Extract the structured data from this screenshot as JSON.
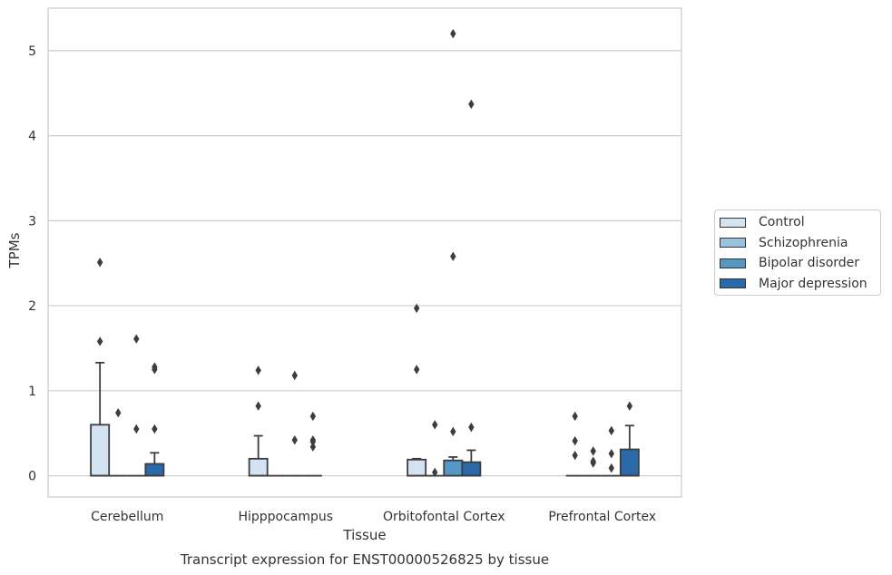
{
  "chart_data": {
    "type": "box",
    "title": "Transcript expression for ENST00000526825 by tissue",
    "xlabel": "Tissue",
    "ylabel": "TPMs",
    "ylim": [
      -0.25,
      5.5
    ],
    "yticks": [
      0,
      1,
      2,
      3,
      4,
      5
    ],
    "grid": "horizontal",
    "legend_position": "right",
    "categories": [
      "Cerebellum",
      "Hipppocampus",
      "Orbitofontal Cortex",
      "Prefrontal Cortex"
    ],
    "series": [
      {
        "name": "Control",
        "color": "#d4e3f1",
        "boxes": [
          {
            "q1": 0,
            "median": 0,
            "q3": 0.6,
            "whisker_low": 0,
            "whisker_high": 1.33,
            "outliers": [
              1.58,
              2.51
            ]
          },
          {
            "q1": 0,
            "median": 0,
            "q3": 0.2,
            "whisker_low": 0,
            "whisker_high": 0.47,
            "outliers": [
              0.82,
              1.24
            ]
          },
          {
            "q1": 0,
            "median": 0,
            "q3": 0.19,
            "whisker_low": 0,
            "whisker_high": 0.2,
            "outliers": [
              1.25,
              1.97
            ]
          },
          {
            "q1": 0,
            "median": 0,
            "q3": 0,
            "whisker_low": 0,
            "whisker_high": 0,
            "outliers": [
              0.24,
              0.41,
              0.7
            ]
          }
        ]
      },
      {
        "name": "Schizophrenia",
        "color": "#9ac2dd",
        "boxes": [
          {
            "q1": 0,
            "median": 0,
            "q3": 0,
            "whisker_low": 0,
            "whisker_high": 0,
            "outliers": [
              0.74
            ]
          },
          {
            "q1": 0,
            "median": 0,
            "q3": 0,
            "whisker_low": 0,
            "whisker_high": 0,
            "outliers": []
          },
          {
            "q1": 0,
            "median": 0,
            "q3": 0,
            "whisker_low": 0,
            "whisker_high": 0,
            "outliers": [
              0.04,
              0.6
            ]
          },
          {
            "q1": 0,
            "median": 0,
            "q3": 0,
            "whisker_low": 0,
            "whisker_high": 0,
            "outliers": [
              0.15,
              0.17,
              0.29
            ]
          }
        ]
      },
      {
        "name": "Bipolar disorder",
        "color": "#5597c5",
        "boxes": [
          {
            "q1": 0,
            "median": 0,
            "q3": 0,
            "whisker_low": 0,
            "whisker_high": 0,
            "outliers": [
              0.55,
              1.61
            ]
          },
          {
            "q1": 0,
            "median": 0,
            "q3": 0,
            "whisker_low": 0,
            "whisker_high": 0,
            "outliers": [
              0.42,
              1.18
            ]
          },
          {
            "q1": 0,
            "median": 0,
            "q3": 0.18,
            "whisker_low": 0,
            "whisker_high": 0.22,
            "outliers": [
              0.52,
              2.58,
              5.2
            ]
          },
          {
            "q1": 0,
            "median": 0,
            "q3": 0,
            "whisker_low": 0,
            "whisker_high": 0,
            "outliers": [
              0.09,
              0.26,
              0.53
            ]
          }
        ]
      },
      {
        "name": "Major depression",
        "color": "#2a6aa9",
        "boxes": [
          {
            "q1": 0,
            "median": 0,
            "q3": 0.14,
            "whisker_low": 0,
            "whisker_high": 0.27,
            "outliers": [
              0.55,
              1.25,
              1.28
            ]
          },
          {
            "q1": 0,
            "median": 0,
            "q3": 0,
            "whisker_low": 0,
            "whisker_high": 0,
            "outliers": [
              0.34,
              0.4,
              0.42,
              0.7
            ]
          },
          {
            "q1": 0,
            "median": 0,
            "q3": 0.16,
            "whisker_low": 0,
            "whisker_high": 0.3,
            "outliers": [
              0.57,
              4.37
            ]
          },
          {
            "q1": 0,
            "median": 0,
            "q3": 0.31,
            "whisker_low": 0,
            "whisker_high": 0.59,
            "outliers": [
              0.82
            ]
          }
        ]
      }
    ]
  }
}
